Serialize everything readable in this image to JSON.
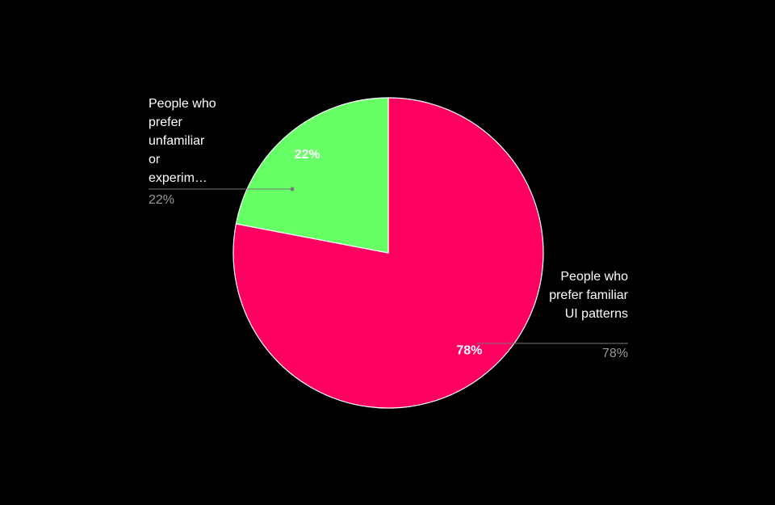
{
  "chart_data": {
    "type": "pie",
    "categories": [
      "People who prefer familiar UI patterns",
      "People who prefer unfamiliar or experim…"
    ],
    "values": [
      78,
      22
    ],
    "value_labels": [
      "78%",
      "22%"
    ],
    "colors": [
      "#ff0060",
      "#66ff66"
    ]
  }
}
